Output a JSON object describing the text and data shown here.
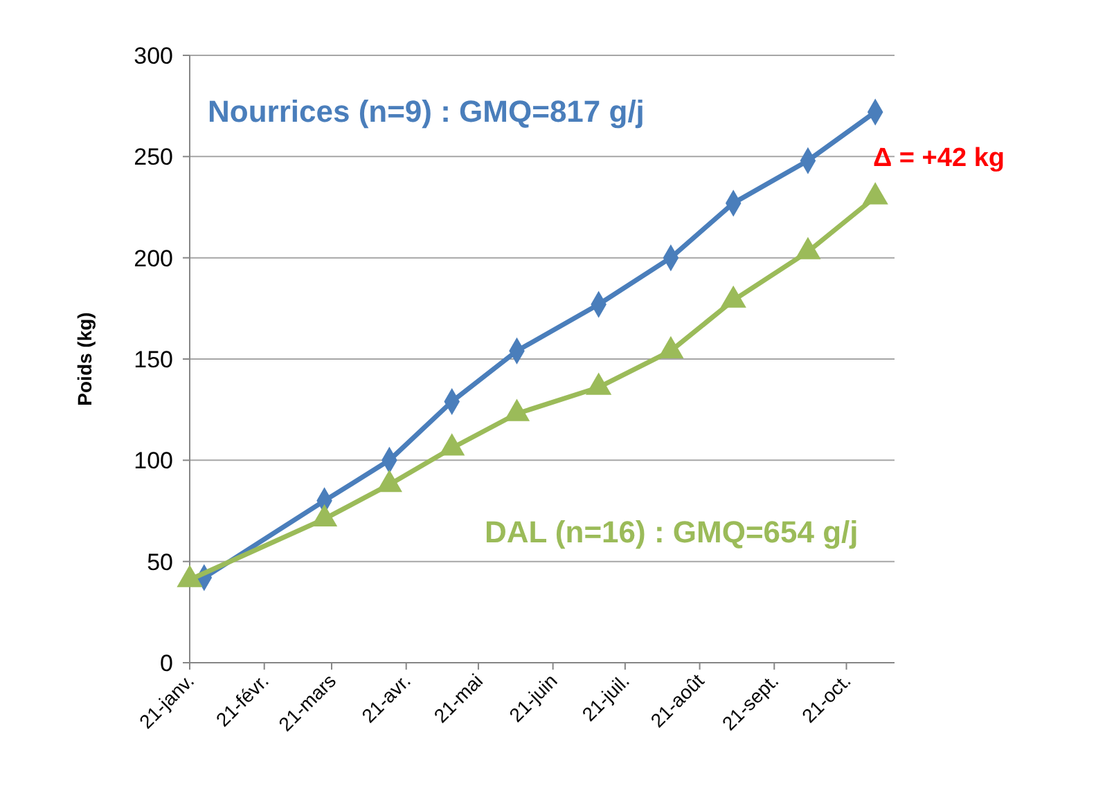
{
  "chart_data": {
    "type": "line",
    "ylabel": "Poids (kg)",
    "x": [
      "--01-27",
      "--03-18",
      "--04-14",
      "--05-10",
      "--06-06",
      "--07-10",
      "--08-09",
      "--09-04",
      "--10-05",
      "--11-02"
    ],
    "series": [
      {
        "name": "Nourrices (n=9) : GMQ=817 g/j",
        "color": "#4a7ebb",
        "marker": "diamond",
        "values": [
          42,
          80,
          100,
          129,
          154,
          177,
          200,
          227,
          248,
          272
        ]
      },
      {
        "name": "DAL (n=16) : GMQ=654 g/j",
        "color": "#9bbb59",
        "x": [
          "--01-21",
          "--03-18",
          "--04-14",
          "--05-10",
          "--06-06",
          "--07-10",
          "--08-09",
          "--09-04",
          "--10-05",
          "--11-02"
        ],
        "marker": "triangle",
        "values": [
          41,
          71,
          88,
          106,
          123,
          136,
          154,
          179,
          203,
          230
        ]
      }
    ],
    "xlim": [
      "--01-21",
      "--11-10"
    ],
    "xticks": [
      {
        "value": "--01-21",
        "label": "21-janv."
      },
      {
        "value": "--02-21",
        "label": "21-févr."
      },
      {
        "value": "--03-21",
        "label": "21-mars"
      },
      {
        "value": "--04-21",
        "label": "21-avr."
      },
      {
        "value": "--05-21",
        "label": "21-mai"
      },
      {
        "value": "--06-21",
        "label": "21-juin"
      },
      {
        "value": "--07-21",
        "label": "21-juil."
      },
      {
        "value": "--08-21",
        "label": "21-août"
      },
      {
        "value": "--09-21",
        "label": "21-sept."
      },
      {
        "value": "--10-21",
        "label": "21-oct."
      }
    ],
    "ylim": [
      0,
      300
    ],
    "yticks": [
      0,
      50,
      100,
      150,
      200,
      250,
      300
    ],
    "grid": "y",
    "annotations": [
      "Δ = +42 kg"
    ]
  }
}
